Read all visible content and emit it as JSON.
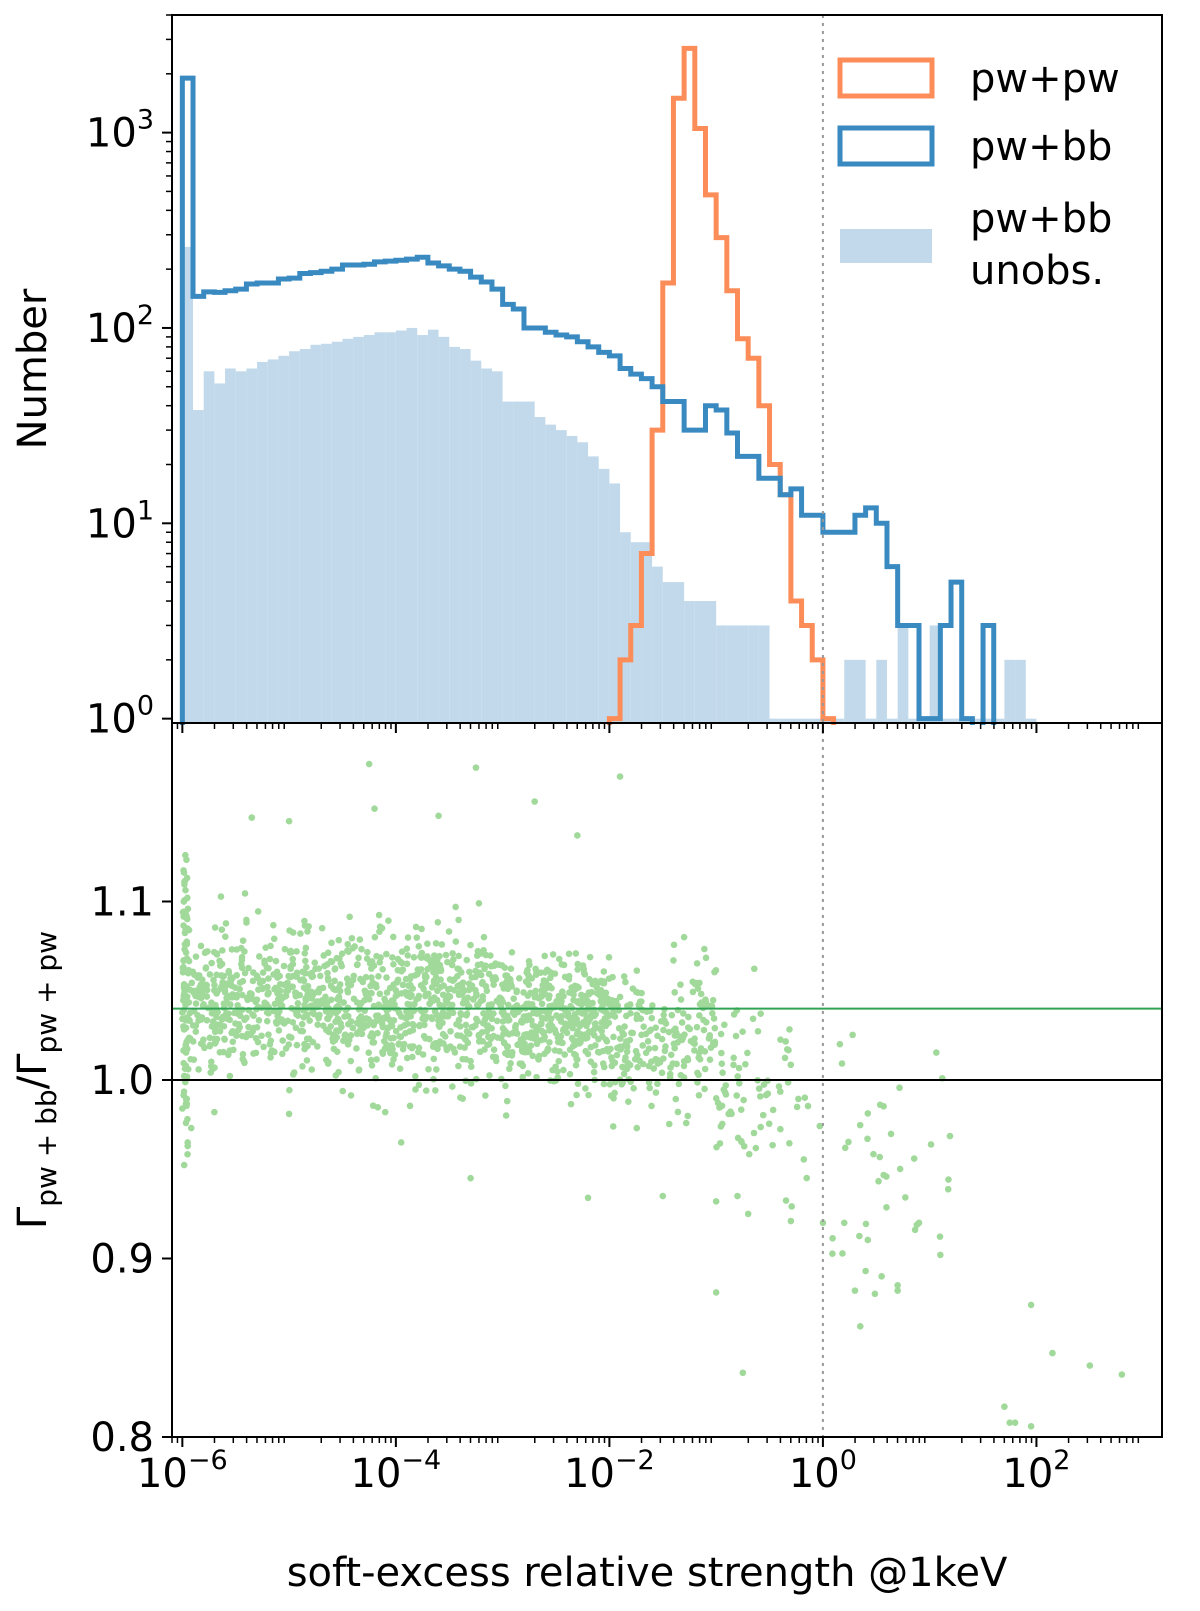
{
  "chart_data": [
    {
      "type": "histogram",
      "panel": "top",
      "ylabel": "Number",
      "yscale": "log",
      "xscale": "log",
      "xlim": [
        8e-07,
        1500
      ],
      "ylim": [
        0.95,
        4000
      ],
      "ytick_values": [
        1,
        10,
        100,
        1000
      ],
      "ytick_labels": [
        {
          "base": "10",
          "exp": "0"
        },
        {
          "base": "10",
          "exp": "1"
        },
        {
          "base": "10",
          "exp": "2"
        },
        {
          "base": "10",
          "exp": "3"
        }
      ],
      "reference_line_x": 1,
      "legend_position": "upper right",
      "legend": [
        {
          "label": "pw+pw",
          "style": "step"
        },
        {
          "label": "pw+bb",
          "style": "step"
        },
        {
          "label_lines": [
            "pw+bb",
            "unobs."
          ],
          "style": "filled"
        }
      ],
      "bin_edges_log10": [
        -6.0,
        -5.9,
        -5.8,
        -5.7,
        -5.6,
        -5.5,
        -5.4,
        -5.3,
        -5.2,
        -5.1,
        -5.0,
        -4.9,
        -4.8,
        -4.7,
        -4.6,
        -4.5,
        -4.4,
        -4.3,
        -4.2,
        -4.1,
        -4.0,
        -3.9,
        -3.8,
        -3.7,
        -3.6,
        -3.5,
        -3.4,
        -3.3,
        -3.2,
        -3.1,
        -3.0,
        -2.9,
        -2.8,
        -2.7,
        -2.6,
        -2.5,
        -2.4,
        -2.3,
        -2.2,
        -2.1,
        -2.0,
        -1.9,
        -1.8,
        -1.7,
        -1.6,
        -1.5,
        -1.4,
        -1.3,
        -1.2,
        -1.1,
        -1.0,
        -0.9,
        -0.8,
        -0.7,
        -0.6,
        -0.5,
        -0.4,
        -0.3,
        -0.2,
        -0.1,
        0.0,
        0.1,
        0.2,
        0.3,
        0.4,
        0.5,
        0.6,
        0.7,
        0.8,
        0.9,
        1.0,
        1.1,
        1.2,
        1.3,
        1.4,
        1.5,
        1.6,
        1.7,
        1.8,
        1.9,
        2.0,
        2.1,
        2.2,
        2.3,
        2.4,
        2.5,
        2.6,
        2.7,
        2.8,
        2.9,
        3.0
      ],
      "series": [
        {
          "name": "pw+bb unobs.",
          "color": "#c1d9ea",
          "counts": [
            260,
            38,
            60,
            52,
            62,
            60,
            62,
            67,
            69,
            72,
            76,
            78,
            82,
            83,
            85,
            88,
            90,
            92,
            95,
            95,
            97,
            100,
            92,
            98,
            90,
            80,
            78,
            68,
            62,
            60,
            42,
            42,
            42,
            35,
            32,
            30,
            28,
            26,
            22,
            19,
            16,
            9,
            8,
            8,
            6,
            5,
            5,
            4,
            4,
            4,
            3,
            3,
            3,
            3,
            3,
            1,
            1,
            1,
            1,
            1,
            1,
            1,
            2,
            2,
            1,
            2,
            1,
            3,
            1,
            1,
            3,
            1,
            1,
            1,
            1,
            1,
            1,
            2,
            2,
            1
          ]
        },
        {
          "name": "pw+pw",
          "color": "#fc8d59",
          "counts": [
            0,
            0,
            0,
            0,
            0,
            0,
            0,
            0,
            0,
            0,
            0,
            0,
            0,
            0,
            0,
            0,
            0,
            0,
            0,
            0,
            0,
            0,
            0,
            0,
            0,
            0,
            0,
            0,
            0,
            0,
            0,
            0,
            0,
            0,
            0,
            0,
            0,
            0,
            0,
            0,
            1,
            2,
            3,
            7,
            30,
            170,
            1500,
            2700,
            1050,
            480,
            290,
            155,
            88,
            70,
            40,
            20,
            14,
            4,
            3,
            2,
            1,
            0,
            0,
            0,
            0,
            0,
            0,
            0,
            0,
            0,
            0,
            0,
            0,
            0,
            0,
            0,
            0,
            0,
            0,
            0,
            0,
            0,
            0,
            0,
            0,
            0,
            0,
            0,
            0,
            0
          ]
        },
        {
          "name": "pw+bb",
          "color": "#3a8ac2",
          "counts": [
            1900,
            145,
            153,
            152,
            155,
            158,
            168,
            170,
            170,
            178,
            180,
            190,
            192,
            195,
            200,
            210,
            210,
            212,
            218,
            220,
            222,
            225,
            230,
            215,
            208,
            200,
            195,
            182,
            172,
            158,
            132,
            125,
            100,
            100,
            95,
            92,
            90,
            85,
            80,
            75,
            72,
            62,
            58,
            55,
            50,
            42,
            42,
            30,
            30,
            40,
            38,
            29,
            22,
            22,
            17,
            17,
            14,
            15,
            11,
            11,
            9,
            9,
            9,
            11,
            12,
            10,
            6,
            3,
            3,
            1,
            1,
            3,
            5,
            1,
            0,
            3,
            0
          ],
          "edge_offset_bins": 0
        }
      ]
    },
    {
      "type": "scatter",
      "panel": "bottom",
      "xlabel": "soft-excess relative strength @1keV",
      "ylabel": "Γpw+bb/Γpw+pw",
      "ylabel_parts": {
        "g1": "Γ",
        "s1": "pw + bb",
        "slash": "/",
        "g2": "Γ",
        "s2": "pw + pw"
      },
      "xscale": "log",
      "xlim": [
        8e-07,
        1500
      ],
      "ylim": [
        0.8,
        1.2
      ],
      "ytick_values": [
        0.8,
        0.9,
        1.0,
        1.1
      ],
      "ytick_labels": [
        "0.8",
        "0.9",
        "1.0",
        "1.1"
      ],
      "xtick_values": [
        1e-06,
        0.0001,
        0.01,
        1,
        100
      ],
      "xtick_labels": [
        {
          "base": "10",
          "exp": "−6"
        },
        {
          "base": "10",
          "exp": "−4"
        },
        {
          "base": "10",
          "exp": "−2"
        },
        {
          "base": "10",
          "exp": "0"
        },
        {
          "base": "10",
          "exp": "2"
        }
      ],
      "point_color": "#a1d99b",
      "median_line_y": 1.04,
      "median_line_color": "#31a354",
      "reference_line_y": 1.0,
      "reference_line_x": 1,
      "trend": {
        "description": "dense cloud centered near 1.04 for strengths below 1e-2, declining toward 0.85 at high strength",
        "segments": [
          {
            "log10_x_range": [
              -6.0,
              -5.95
            ],
            "y_center": 1.05,
            "y_spread": 0.045,
            "n": 90
          },
          {
            "log10_x_range": [
              -5.95,
              -3.0
            ],
            "y_center": 1.042,
            "y_spread": 0.022,
            "n": 1050
          },
          {
            "log10_x_range": [
              -3.0,
              -2.0
            ],
            "y_center": 1.034,
            "y_spread": 0.018,
            "n": 420
          },
          {
            "log10_x_range": [
              -2.0,
              -1.0
            ],
            "y_center": 1.022,
            "y_spread": 0.022,
            "n": 220
          },
          {
            "log10_x_range": [
              -1.0,
              -0.3
            ],
            "y_center": 0.995,
            "y_spread": 0.03,
            "n": 70
          },
          {
            "log10_x_range": [
              -0.3,
              1.2
            ],
            "y_center": 0.955,
            "y_spread": 0.04,
            "n": 45
          }
        ],
        "outliers": [
          [
            -5.35,
            1.147
          ],
          [
            -5.0,
            1.145
          ],
          [
            -4.2,
            1.152
          ],
          [
            -3.6,
            1.148
          ],
          [
            -2.7,
            1.156
          ],
          [
            -2.3,
            1.137
          ],
          [
            -1.3,
            1.08
          ],
          [
            -1.4,
            1.067
          ],
          [
            -1.1,
            1.045
          ],
          [
            -5.7,
            0.982
          ],
          [
            -5.0,
            0.981
          ],
          [
            -4.1,
            0.982
          ],
          [
            -3.95,
            0.965
          ],
          [
            -3.3,
            0.945
          ],
          [
            -2.2,
            0.934
          ],
          [
            -1.5,
            0.935
          ],
          [
            -1.0,
            0.932
          ],
          [
            -0.8,
            0.935
          ],
          [
            -0.7,
            0.925
          ],
          [
            -0.3,
            0.921
          ],
          [
            0.0,
            0.92
          ],
          [
            0.2,
            0.92
          ],
          [
            0.4,
            0.893
          ],
          [
            0.55,
            0.89
          ],
          [
            0.7,
            0.885
          ],
          [
            0.7,
            0.882
          ],
          [
            0.3,
            0.882
          ],
          [
            0.35,
            0.862
          ],
          [
            0.9,
            0.92
          ],
          [
            1.1,
            0.902
          ],
          [
            -1.0,
            0.881
          ],
          [
            -0.75,
            0.836
          ],
          [
            1.7,
            0.817
          ],
          [
            1.75,
            0.808
          ],
          [
            1.8,
            0.808
          ],
          [
            1.95,
            0.806
          ],
          [
            2.15,
            0.847
          ],
          [
            1.95,
            0.874
          ],
          [
            2.5,
            0.84
          ],
          [
            2.8,
            0.835
          ],
          [
            -5.95,
            0.965
          ],
          [
            -5.95,
            0.963
          ],
          [
            -4.25,
            1.177
          ],
          [
            -3.25,
            1.175
          ],
          [
            -1.9,
            1.17
          ]
        ]
      }
    }
  ]
}
